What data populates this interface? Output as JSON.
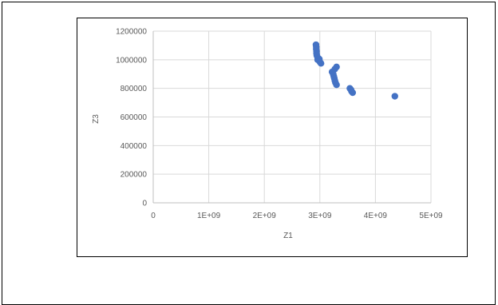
{
  "chart_data": {
    "type": "scatter",
    "title": "",
    "xlabel": "Z1",
    "ylabel": "Z3",
    "xlim": [
      0,
      5000000000
    ],
    "ylim": [
      0,
      1200000
    ],
    "x_ticks": [
      0,
      1000000000,
      2000000000,
      3000000000,
      4000000000,
      5000000000
    ],
    "x_tick_labels": [
      "0",
      "1E+09",
      "2E+09",
      "3E+09",
      "4E+09",
      "5E+09"
    ],
    "y_ticks": [
      0,
      200000,
      400000,
      600000,
      800000,
      1000000,
      1200000
    ],
    "y_tick_labels": [
      "0",
      "200000",
      "400000",
      "600000",
      "800000",
      "1000000",
      "1200000"
    ],
    "grid": true,
    "legend": "none",
    "marker_color": "#4472c4",
    "points": [
      {
        "x": 2930000000,
        "y": 1105000
      },
      {
        "x": 2935000000,
        "y": 1090000
      },
      {
        "x": 2935000000,
        "y": 1075000
      },
      {
        "x": 2940000000,
        "y": 1060000
      },
      {
        "x": 2940000000,
        "y": 1045000
      },
      {
        "x": 2945000000,
        "y": 1030000
      },
      {
        "x": 2960000000,
        "y": 1015000
      },
      {
        "x": 2960000000,
        "y": 1000000
      },
      {
        "x": 2990000000,
        "y": 1005000
      },
      {
        "x": 3000000000,
        "y": 985000
      },
      {
        "x": 3020000000,
        "y": 975000
      },
      {
        "x": 3300000000,
        "y": 950000
      },
      {
        "x": 3270000000,
        "y": 935000
      },
      {
        "x": 3220000000,
        "y": 915000
      },
      {
        "x": 3240000000,
        "y": 900000
      },
      {
        "x": 3250000000,
        "y": 885000
      },
      {
        "x": 3260000000,
        "y": 870000
      },
      {
        "x": 3270000000,
        "y": 855000
      },
      {
        "x": 3280000000,
        "y": 840000
      },
      {
        "x": 3300000000,
        "y": 825000
      },
      {
        "x": 3540000000,
        "y": 800000
      },
      {
        "x": 3560000000,
        "y": 790000
      },
      {
        "x": 3570000000,
        "y": 780000
      },
      {
        "x": 3590000000,
        "y": 770000
      },
      {
        "x": 4350000000,
        "y": 745000
      }
    ]
  }
}
